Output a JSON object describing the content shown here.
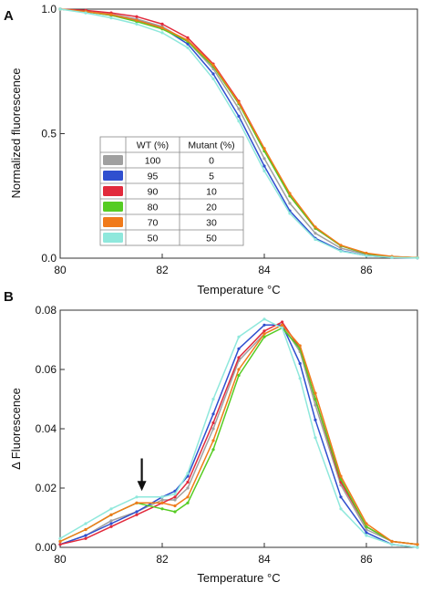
{
  "chart_data": [
    {
      "panel_label": "A",
      "type": "line",
      "xlabel": "Temperature  °C",
      "ylabel": "Normalized fluorescence",
      "xlim": [
        80,
        87
      ],
      "ylim": [
        0,
        1.0
      ],
      "xticks": [
        "80",
        "82",
        "84",
        "86"
      ],
      "yticks": [
        "0.0",
        "0.5",
        "1.0"
      ],
      "legend": {
        "placement": "center-left",
        "headers": [
          "WT (%)",
          "Mutant (%)"
        ],
        "rows": [
          {
            "wt": "100",
            "mutant": "0",
            "color": "#a0a0a0"
          },
          {
            "wt": "95",
            "mutant": "5",
            "color": "#2f4fcf"
          },
          {
            "wt": "90",
            "mutant": "10",
            "color": "#e22a3c"
          },
          {
            "wt": "80",
            "mutant": "20",
            "color": "#55cc22"
          },
          {
            "wt": "70",
            "mutant": "30",
            "color": "#f07a1a"
          },
          {
            "wt": "50",
            "mutant": "50",
            "color": "#8fe8dc"
          }
        ]
      },
      "series": [
        {
          "color": "#a0a0a0",
          "x": [
            80,
            80.5,
            81,
            81.5,
            82,
            82.5,
            83,
            83.5,
            84,
            84.5,
            85,
            85.5,
            86,
            86.5,
            87
          ],
          "y": [
            1.0,
            0.99,
            0.98,
            0.96,
            0.93,
            0.87,
            0.76,
            0.6,
            0.4,
            0.22,
            0.1,
            0.04,
            0.015,
            0.005,
            0.002
          ]
        },
        {
          "color": "#2f4fcf",
          "x": [
            80,
            80.5,
            81,
            81.5,
            82,
            82.5,
            83,
            83.5,
            84,
            84.5,
            85,
            85.5,
            86,
            86.5,
            87
          ],
          "y": [
            1.0,
            0.99,
            0.975,
            0.955,
            0.925,
            0.86,
            0.74,
            0.57,
            0.37,
            0.19,
            0.08,
            0.03,
            0.01,
            0.003,
            0.001
          ]
        },
        {
          "color": "#e22a3c",
          "x": [
            80,
            80.5,
            81,
            81.5,
            82,
            82.5,
            83,
            83.5,
            84,
            84.5,
            85,
            85.5,
            86,
            86.5,
            87
          ],
          "y": [
            1.0,
            0.995,
            0.985,
            0.97,
            0.94,
            0.885,
            0.78,
            0.63,
            0.44,
            0.25,
            0.12,
            0.05,
            0.018,
            0.006,
            0.002
          ]
        },
        {
          "color": "#55cc22",
          "x": [
            80,
            80.5,
            81,
            81.5,
            82,
            82.5,
            83,
            83.5,
            84,
            84.5,
            85,
            85.5,
            86,
            86.5,
            87
          ],
          "y": [
            1.0,
            0.99,
            0.975,
            0.95,
            0.92,
            0.87,
            0.77,
            0.62,
            0.43,
            0.25,
            0.12,
            0.05,
            0.018,
            0.006,
            0.002
          ]
        },
        {
          "color": "#f07a1a",
          "x": [
            80,
            80.5,
            81,
            81.5,
            82,
            82.5,
            83,
            83.5,
            84,
            84.5,
            85,
            85.5,
            86,
            86.5,
            87
          ],
          "y": [
            1.0,
            0.99,
            0.978,
            0.955,
            0.925,
            0.875,
            0.775,
            0.625,
            0.44,
            0.26,
            0.125,
            0.052,
            0.02,
            0.007,
            0.002
          ]
        },
        {
          "color": "#8fe8dc",
          "x": [
            80,
            80.5,
            81,
            81.5,
            82,
            82.5,
            83,
            83.5,
            84,
            84.5,
            85,
            85.5,
            86,
            86.5,
            87
          ],
          "y": [
            1.0,
            0.985,
            0.965,
            0.94,
            0.905,
            0.845,
            0.72,
            0.55,
            0.35,
            0.18,
            0.075,
            0.028,
            0.01,
            0.003,
            0.001
          ]
        }
      ]
    },
    {
      "panel_label": "B",
      "type": "line",
      "xlabel": "Temperature  °C",
      "ylabel": "Δ Fluorescence",
      "xlim": [
        80,
        87
      ],
      "ylim": [
        0,
        0.08
      ],
      "xticks": [
        "80",
        "82",
        "84",
        "86"
      ],
      "yticks": [
        "0.00",
        "0.02",
        "0.04",
        "0.06",
        "0.08"
      ],
      "annotation": {
        "type": "arrow",
        "x": 81.6,
        "y_from": 0.03,
        "y_to": 0.019,
        "icon": "down-arrow-icon"
      },
      "series": [
        {
          "color": "#a0a0a0",
          "x": [
            80,
            80.5,
            81,
            81.5,
            82,
            82.25,
            82.5,
            83,
            83.5,
            84,
            84.35,
            84.7,
            85,
            85.5,
            86,
            86.5,
            87
          ],
          "y": [
            0.001,
            0.004,
            0.009,
            0.012,
            0.016,
            0.016,
            0.02,
            0.04,
            0.063,
            0.072,
            0.075,
            0.066,
            0.048,
            0.021,
            0.006,
            0.002,
            0.001
          ]
        },
        {
          "color": "#2f4fcf",
          "x": [
            80,
            80.5,
            81,
            81.5,
            82,
            82.25,
            82.5,
            83,
            83.5,
            84,
            84.35,
            84.7,
            85,
            85.5,
            86,
            86.5,
            87
          ],
          "y": [
            0.001,
            0.004,
            0.008,
            0.012,
            0.017,
            0.019,
            0.024,
            0.045,
            0.067,
            0.075,
            0.075,
            0.062,
            0.043,
            0.017,
            0.005,
            0.001,
            0.0
          ]
        },
        {
          "color": "#e22a3c",
          "x": [
            80,
            80.5,
            81,
            81.5,
            82,
            82.25,
            82.5,
            83,
            83.5,
            84,
            84.35,
            84.7,
            85,
            85.5,
            86,
            86.5,
            87
          ],
          "y": [
            0.001,
            0.003,
            0.007,
            0.011,
            0.015,
            0.017,
            0.022,
            0.042,
            0.064,
            0.073,
            0.076,
            0.067,
            0.05,
            0.022,
            0.007,
            0.002,
            0.001
          ]
        },
        {
          "color": "#55cc22",
          "x": [
            80,
            80.5,
            81,
            81.5,
            82,
            82.25,
            82.5,
            83,
            83.5,
            84,
            84.35,
            84.7,
            85,
            85.5,
            86,
            86.5,
            87
          ],
          "y": [
            0.002,
            0.006,
            0.011,
            0.015,
            0.013,
            0.012,
            0.015,
            0.033,
            0.058,
            0.071,
            0.074,
            0.067,
            0.05,
            0.023,
            0.007,
            0.002,
            0.001
          ]
        },
        {
          "color": "#f07a1a",
          "x": [
            80,
            80.5,
            81,
            81.5,
            82,
            82.25,
            82.5,
            83,
            83.5,
            84,
            84.35,
            84.7,
            85,
            85.5,
            86,
            86.5,
            87
          ],
          "y": [
            0.002,
            0.006,
            0.011,
            0.015,
            0.015,
            0.014,
            0.017,
            0.036,
            0.06,
            0.072,
            0.075,
            0.068,
            0.052,
            0.024,
            0.008,
            0.002,
            0.001
          ]
        },
        {
          "color": "#8fe8dc",
          "x": [
            80,
            80.5,
            81,
            81.5,
            82,
            82.25,
            82.5,
            83,
            83.5,
            84,
            84.35,
            84.7,
            85,
            85.5,
            86,
            86.5,
            87
          ],
          "y": [
            0.003,
            0.008,
            0.013,
            0.017,
            0.017,
            0.018,
            0.025,
            0.05,
            0.071,
            0.077,
            0.074,
            0.057,
            0.037,
            0.013,
            0.004,
            0.001,
            0.0
          ]
        }
      ]
    }
  ]
}
